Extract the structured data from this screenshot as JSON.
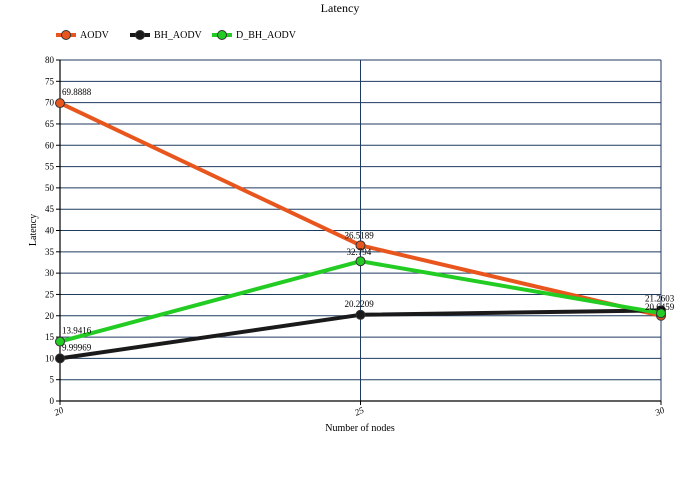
{
  "chart_data": {
    "type": "line",
    "title": "Latency",
    "xlabel": "Number of nodes",
    "ylabel": "Latency",
    "x": [
      20,
      25,
      30
    ],
    "x_tick_labels": [
      "20",
      "25",
      "30"
    ],
    "ylim": [
      0,
      80
    ],
    "y_ticks": [
      0,
      5,
      10,
      15,
      20,
      25,
      30,
      35,
      40,
      45,
      50,
      55,
      60,
      65,
      70,
      75,
      80
    ],
    "grid": true,
    "legend_position": "top-left",
    "series": [
      {
        "name": "AODV",
        "color": "#e8561e",
        "values": [
          69.8888,
          36.5189,
          20.0
        ],
        "labels": [
          "69.8888",
          "36.5189",
          ""
        ]
      },
      {
        "name": "BH_AODV",
        "color": "#1a1a1a",
        "values": [
          9.99969,
          20.2209,
          21.2603
        ],
        "labels": [
          "9.99969",
          "20.2209",
          "21.2603"
        ]
      },
      {
        "name": "D_BH_AODV",
        "color": "#22cc22",
        "values": [
          13.9416,
          32.794,
          20.6
        ],
        "labels": [
          "13.9416",
          "32.794",
          "20.6459"
        ]
      }
    ]
  }
}
